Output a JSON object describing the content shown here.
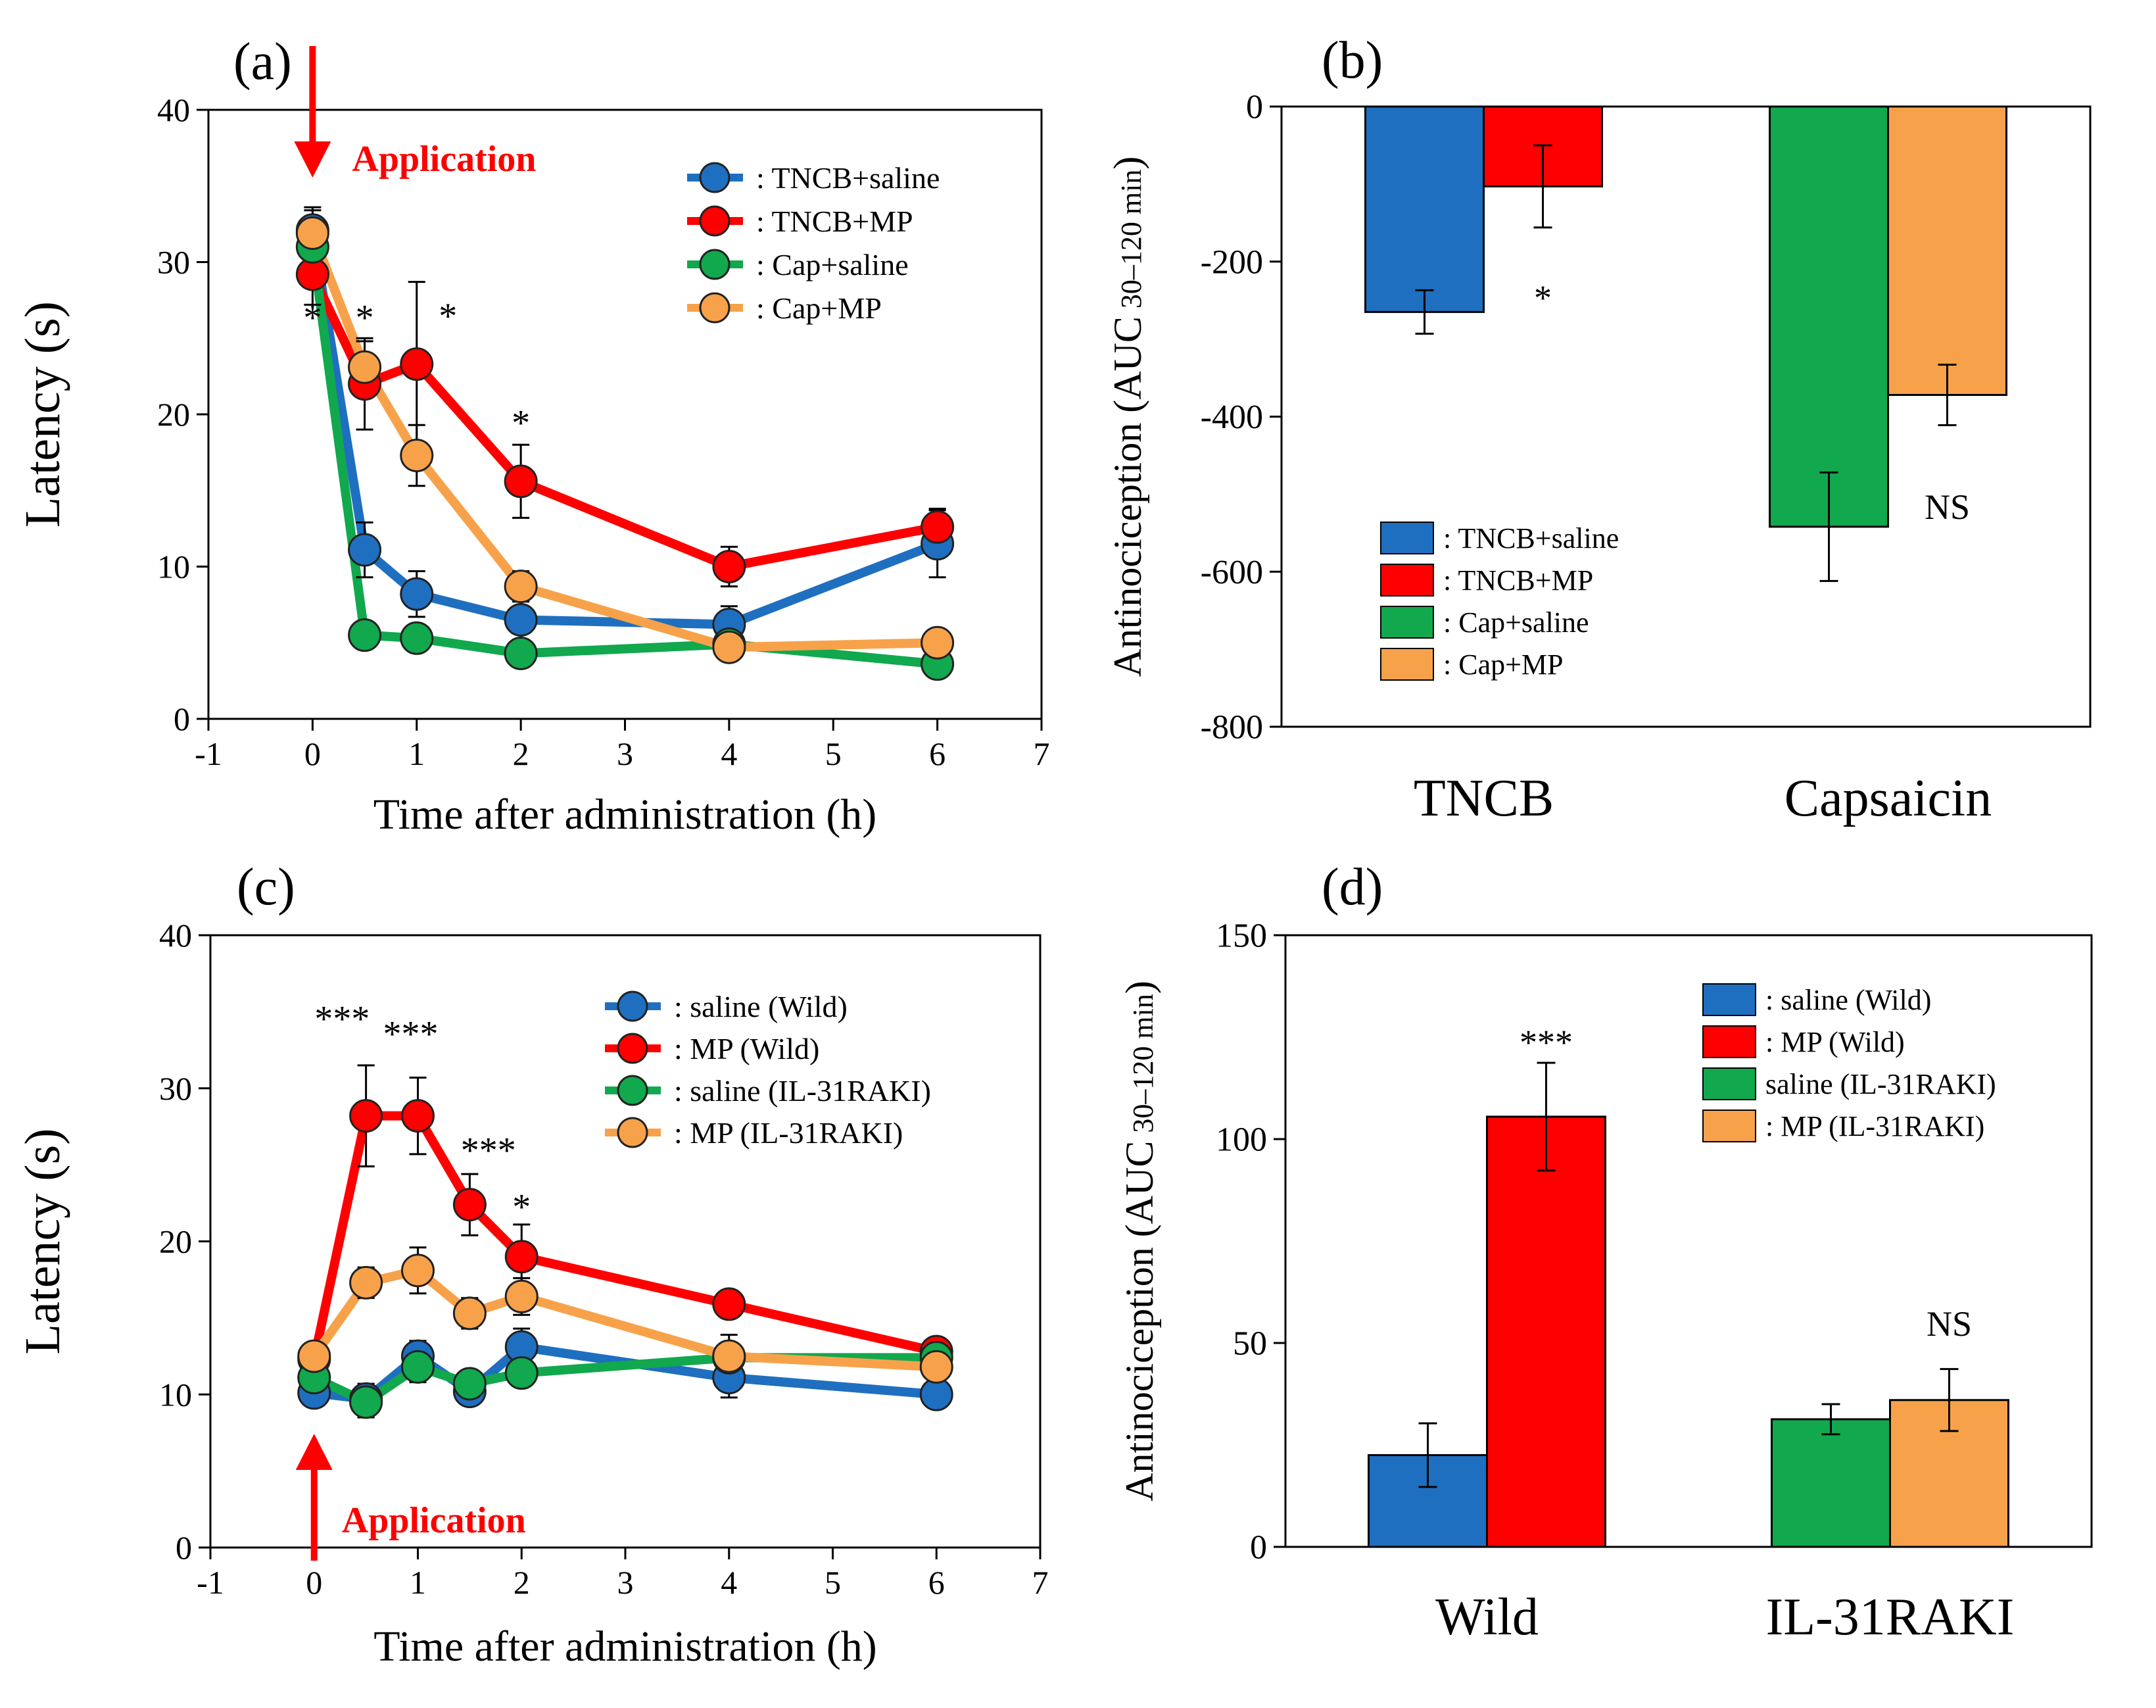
{
  "colors": {
    "blue": "#1f6fc0",
    "red": "#ff0000",
    "green": "#11a84e",
    "orange": "#f7a24a",
    "axis": "#000000",
    "annotation": "#ff0000"
  },
  "chart_data": [
    {
      "id": "a",
      "panel_label": "(a)",
      "type": "line",
      "xlabel": "Time after administration (h)",
      "ylabel": "Latency (s)",
      "xlim": [
        -1,
        7
      ],
      "ylim": [
        0,
        40
      ],
      "xticks": [
        "-1",
        "0",
        "1",
        "2",
        "3",
        "4",
        "5",
        "6",
        "7"
      ],
      "yticks": [
        "0",
        "10",
        "20",
        "30",
        "40"
      ],
      "annotation": {
        "label": "Application",
        "x": 0,
        "direction": "down"
      },
      "legend_position": "top-right",
      "series": [
        {
          "name": ": TNCB+saline",
          "color": "blue",
          "x": [
            0,
            0.5,
            1,
            2,
            4,
            6
          ],
          "y": [
            32.1,
            11.1,
            8.2,
            6.5,
            6.2,
            11.5
          ],
          "err": [
            1.5,
            1.8,
            1.5,
            1.3,
            1.2,
            2.2
          ]
        },
        {
          "name": ": TNCB+MP",
          "color": "red",
          "x": [
            0,
            0.5,
            1,
            2,
            4,
            6
          ],
          "y": [
            29.2,
            22.0,
            23.3,
            15.6,
            10.0,
            12.6
          ],
          "err": [
            2.0,
            3.0,
            5.4,
            2.4,
            1.3,
            1.2
          ]
        },
        {
          "name": ": Cap+saline",
          "color": "green",
          "x": [
            0,
            0.5,
            1,
            2,
            4,
            6
          ],
          "y": [
            31.0,
            5.5,
            5.3,
            4.3,
            4.9,
            3.6
          ],
          "err": [
            1.2,
            0.6,
            0.6,
            0.5,
            0.6,
            0.5
          ]
        },
        {
          "name": ": Cap+MP",
          "color": "orange",
          "x": [
            0,
            0.5,
            1,
            2,
            4,
            6
          ],
          "y": [
            31.9,
            23.1,
            17.3,
            8.7,
            4.7,
            5.0
          ],
          "err": [
            1.5,
            1.7,
            2.0,
            1.0,
            0.5,
            0.5
          ]
        }
      ],
      "significance": [
        {
          "x": 0,
          "y": 26.5,
          "label": "*"
        },
        {
          "x": 0.5,
          "y": 26.5,
          "label": "*"
        },
        {
          "x": 1.3,
          "y": 26.6,
          "label": "*"
        },
        {
          "x": 2,
          "y": 19.6,
          "label": "*"
        }
      ]
    },
    {
      "id": "b",
      "panel_label": "(b)",
      "type": "bar",
      "ylabel": "Antinociception (AUC",
      "ylabel_sub": "30–120 min",
      "ylabel_close": ")",
      "ylim": [
        -800,
        0
      ],
      "yticks": [
        "-800",
        "-600",
        "-400",
        "-200",
        "0"
      ],
      "categories": [
        "TNCB",
        "Capsaicin"
      ],
      "legend_position": "bottom-left",
      "series": [
        {
          "name": ": TNCB+saline",
          "color": "blue",
          "category": 0,
          "value": -265,
          "err": 28
        },
        {
          "name": ": TNCB+MP",
          "color": "red",
          "category": 0,
          "value": -103,
          "err": 53
        },
        {
          "name": ": Cap+saline",
          "color": "green",
          "category": 1,
          "value": -542,
          "err": 70
        },
        {
          "name": ": Cap+MP",
          "color": "orange",
          "category": 1,
          "value": -372,
          "err": 39
        }
      ],
      "significance": [
        {
          "category": 0,
          "y": -245,
          "label": "*"
        },
        {
          "category": 1,
          "y": -515,
          "label": "NS"
        }
      ]
    },
    {
      "id": "c",
      "panel_label": "(c)",
      "type": "line",
      "xlabel": "Time after administration (h)",
      "ylabel": "Latency (s)",
      "xlim": [
        -1,
        7
      ],
      "ylim": [
        0,
        40
      ],
      "xticks": [
        "-1",
        "0",
        "1",
        "2",
        "3",
        "4",
        "5",
        "6",
        "7"
      ],
      "yticks": [
        "0",
        "10",
        "20",
        "30",
        "40"
      ],
      "annotation": {
        "label": "Application",
        "x": 0,
        "direction": "up"
      },
      "legend_position": "top-right",
      "series": [
        {
          "name": ": saline (Wild)",
          "color": "blue",
          "x": [
            0,
            0.5,
            1,
            1.5,
            2,
            4,
            6
          ],
          "y": [
            10.1,
            9.7,
            12.5,
            10.2,
            13.1,
            11.1,
            10.0
          ],
          "err": [
            0.8,
            1.0,
            1.0,
            0.8,
            1.2,
            1.3,
            0.5
          ]
        },
        {
          "name": ": MP (Wild)",
          "color": "red",
          "x": [
            0,
            0.5,
            1,
            1.5,
            2,
            4,
            6
          ],
          "y": [
            12.3,
            28.2,
            28.2,
            22.4,
            19.0,
            15.9,
            12.8
          ],
          "err": [
            1.0,
            3.3,
            2.5,
            2.0,
            2.1,
            0.8,
            0.6
          ]
        },
        {
          "name": ": saline (IL-31RAKI)",
          "color": "green",
          "x": [
            0,
            0.5,
            1,
            1.5,
            2,
            4,
            6
          ],
          "y": [
            11.1,
            9.5,
            11.8,
            10.7,
            11.4,
            12.4,
            12.4
          ],
          "err": [
            0.8,
            1.0,
            1.0,
            0.8,
            0.8,
            0.7,
            0.5
          ]
        },
        {
          "name": ": MP (IL-31RAKI)",
          "color": "orange",
          "x": [
            0,
            0.5,
            1,
            1.5,
            2,
            4,
            6
          ],
          "y": [
            12.5,
            17.3,
            18.1,
            15.3,
            16.4,
            12.5,
            11.8
          ],
          "err": [
            0.8,
            1.0,
            1.5,
            1.0,
            1.2,
            1.4,
            0.6
          ]
        }
      ],
      "significance": [
        {
          "x": 0.27,
          "y": 34.7,
          "label": "***"
        },
        {
          "x": 0.93,
          "y": 33.7,
          "label": "***"
        },
        {
          "x": 1.68,
          "y": 26.1,
          "label": "***"
        },
        {
          "x": 2,
          "y": 22.4,
          "label": "*"
        }
      ]
    },
    {
      "id": "d",
      "panel_label": "(d)",
      "type": "bar",
      "ylabel": "Antinociception (AUC",
      "ylabel_sub": "30–120 min",
      "ylabel_close": ")",
      "ylim": [
        0,
        150
      ],
      "yticks": [
        "0",
        "50",
        "100",
        "150"
      ],
      "categories": [
        "Wild",
        "IL-31RAKI"
      ],
      "legend_position": "top-right",
      "series": [
        {
          "name": ": saline (Wild)",
          "color": "blue",
          "category": 0,
          "value": 22.5,
          "err": 7.8
        },
        {
          "name": ": MP (Wild)",
          "color": "red",
          "category": 0,
          "value": 105.5,
          "err": 13.2
        },
        {
          "name": "saline (IL-31RAKI)",
          "color": "green",
          "category": 1,
          "value": 31.3,
          "err": 3.7
        },
        {
          "name": ": MP (IL-31RAKI)",
          "color": "orange",
          "category": 1,
          "value": 36.0,
          "err": 7.6
        }
      ],
      "significance": [
        {
          "category": 0,
          "y": 124,
          "label": "***"
        },
        {
          "category": 1,
          "y": 55,
          "label": "NS"
        }
      ]
    }
  ]
}
